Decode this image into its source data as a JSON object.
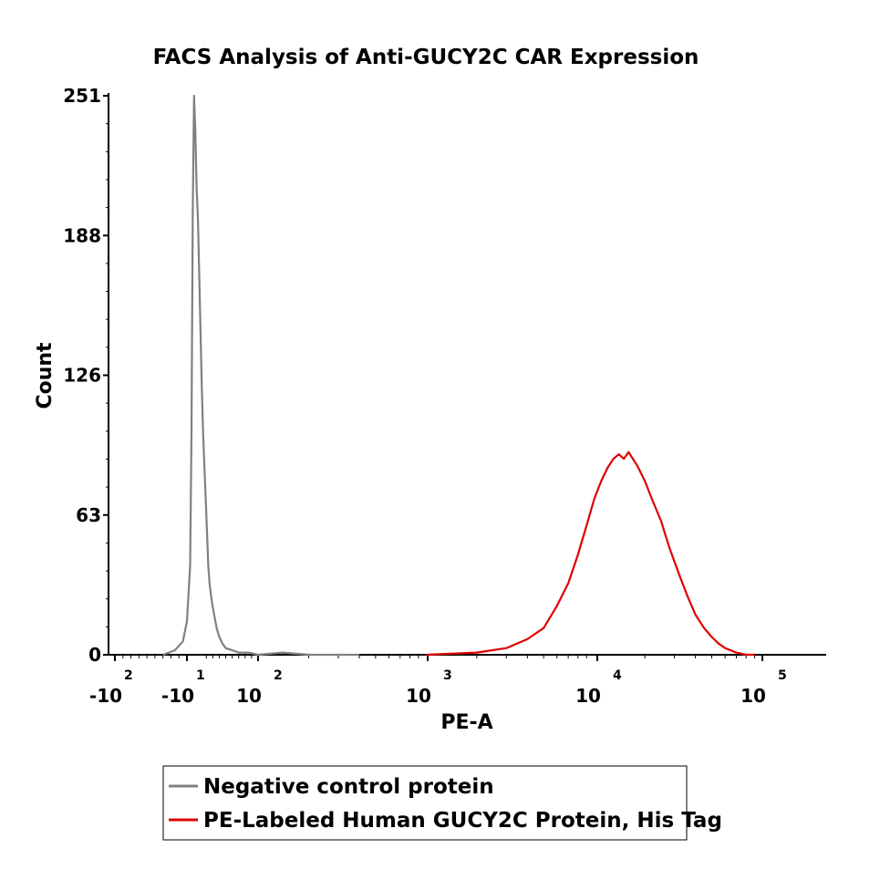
{
  "chart_data": {
    "type": "line",
    "title": "FACS Analysis of Anti-GUCY2C CAR Expression",
    "xlabel": "PE-A",
    "ylabel": "Count",
    "x_scale": "biexponential",
    "ylim": [
      0,
      251
    ],
    "y_ticks": [
      "0",
      "63",
      "126",
      "188",
      "251"
    ],
    "x_ticks": [
      {
        "base": "-10",
        "exp": "2"
      },
      {
        "base": "-10",
        "exp": "1"
      },
      {
        "base": "10",
        "exp": "2"
      },
      {
        "base": "10",
        "exp": "3"
      },
      {
        "base": "10",
        "exp": "4"
      },
      {
        "base": "10",
        "exp": "5"
      }
    ],
    "legend_position": "bottom",
    "series": [
      {
        "name": "Negative control protein",
        "color": "#808080",
        "x": [
          -40,
          -25,
          -15,
          -10,
          -5,
          -3,
          -1,
          1,
          3,
          5,
          7,
          9,
          11,
          13,
          15,
          17,
          19,
          21,
          23,
          25,
          28,
          32,
          36,
          40,
          45,
          50,
          60,
          70,
          85,
          100,
          140,
          200,
          400
        ],
        "y": [
          0,
          2,
          6,
          15,
          40,
          100,
          200,
          251,
          235,
          210,
          195,
          170,
          145,
          120,
          100,
          85,
          70,
          55,
          40,
          32,
          25,
          18,
          12,
          8,
          5,
          3,
          2,
          1,
          1,
          0,
          1,
          0,
          0
        ]
      },
      {
        "name": "PE-Labeled Human GUCY2C Protein, His Tag",
        "color": "#e00000",
        "x": [
          1000,
          2000,
          3000,
          4000,
          5000,
          6000,
          7000,
          8000,
          9000,
          10000,
          11000,
          12000,
          13000,
          14000,
          15000,
          16000,
          18000,
          20000,
          22000,
          25000,
          28000,
          32000,
          36000,
          40000,
          45000,
          50000,
          55000,
          60000,
          70000,
          80000,
          90000
        ],
        "y": [
          0,
          1,
          3,
          7,
          12,
          22,
          32,
          45,
          58,
          70,
          78,
          84,
          88,
          90,
          88,
          91,
          85,
          78,
          70,
          60,
          48,
          36,
          26,
          18,
          12,
          8,
          5,
          3,
          1,
          0,
          0
        ]
      }
    ]
  }
}
